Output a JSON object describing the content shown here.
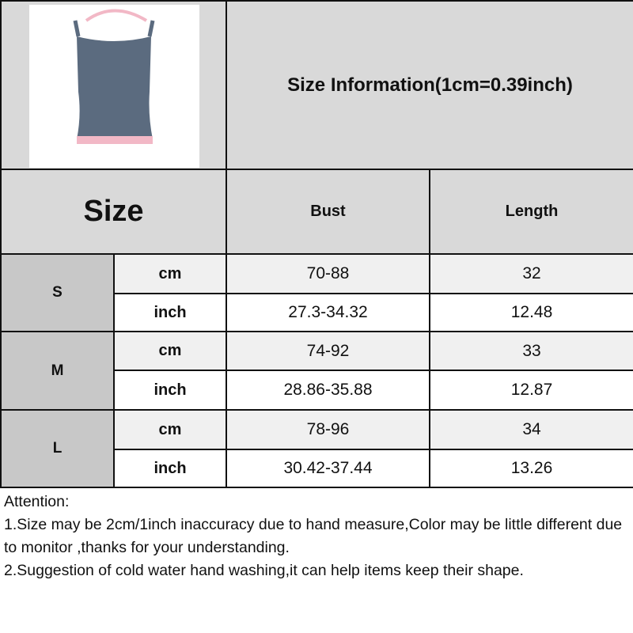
{
  "header": {
    "title": "Size Information(1cm=0.39inch)",
    "product_image": "gray camisole tank top with pink trim"
  },
  "table": {
    "size_label": "Size",
    "columns": [
      "Bust",
      "Length"
    ],
    "rows": [
      {
        "size": "S",
        "cm": {
          "unit": "cm",
          "bust": "70-88",
          "length": "32"
        },
        "inch": {
          "unit": "inch",
          "bust": "27.3-34.32",
          "length": "12.48"
        }
      },
      {
        "size": "M",
        "cm": {
          "unit": "cm",
          "bust": "74-92",
          "length": "33"
        },
        "inch": {
          "unit": "inch",
          "bust": "28.86-35.88",
          "length": "12.87"
        }
      },
      {
        "size": "L",
        "cm": {
          "unit": "cm",
          "bust": "78-96",
          "length": "34"
        },
        "inch": {
          "unit": "inch",
          "bust": "30.42-37.44",
          "length": "13.26"
        }
      }
    ]
  },
  "attention": {
    "heading": "Attention:",
    "line1": "1.Size may be 2cm/1inch inaccuracy due to hand measure,Color may be little different due to monitor ,thanks for your understanding.",
    "line2": "2.Suggestion of cold water hand washing,it can help items keep their shape."
  },
  "colors": {
    "header": "#d9d9d9",
    "size_col": "#c8c8c8",
    "cm_row": "#f0f0f0",
    "garment": "#5b6b7f",
    "trim": "#f2b8c6"
  }
}
